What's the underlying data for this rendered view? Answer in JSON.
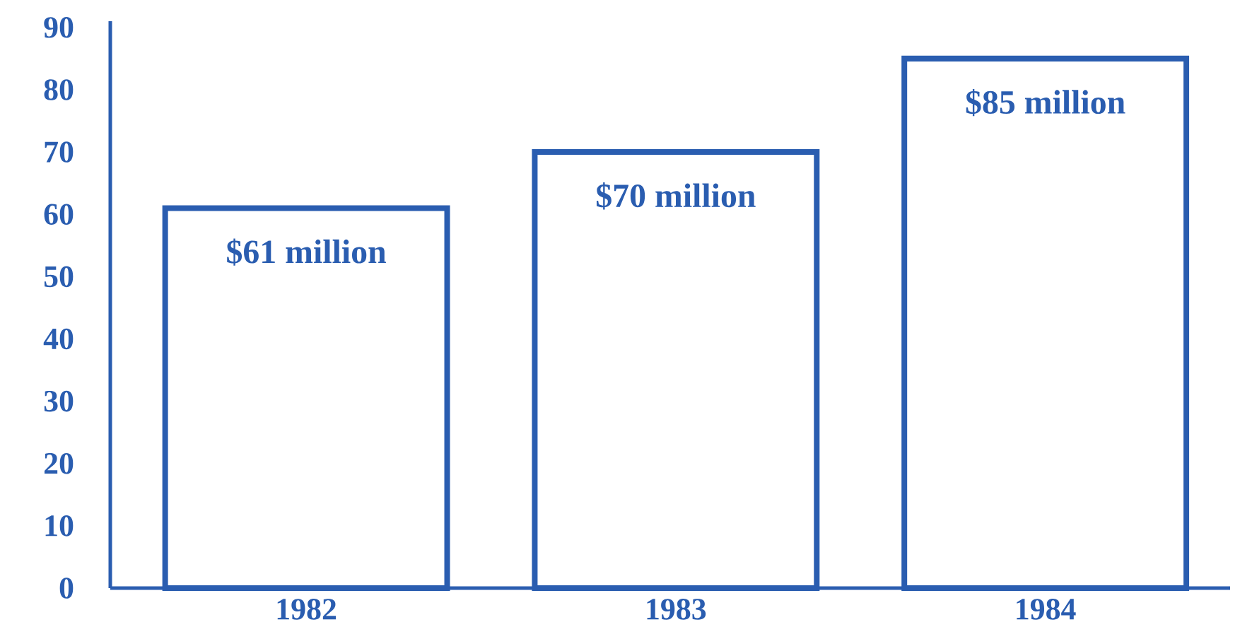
{
  "chart_data": {
    "type": "bar",
    "categories": [
      "1982",
      "1983",
      "1984"
    ],
    "values": [
      61,
      70,
      85
    ],
    "value_labels": [
      "$61 million",
      "$70 million",
      "$85 million"
    ],
    "color": "#2a5db0",
    "ylim": [
      0,
      91
    ],
    "yticks": [
      0,
      10,
      20,
      30,
      40,
      50,
      60,
      70,
      80,
      90
    ]
  }
}
